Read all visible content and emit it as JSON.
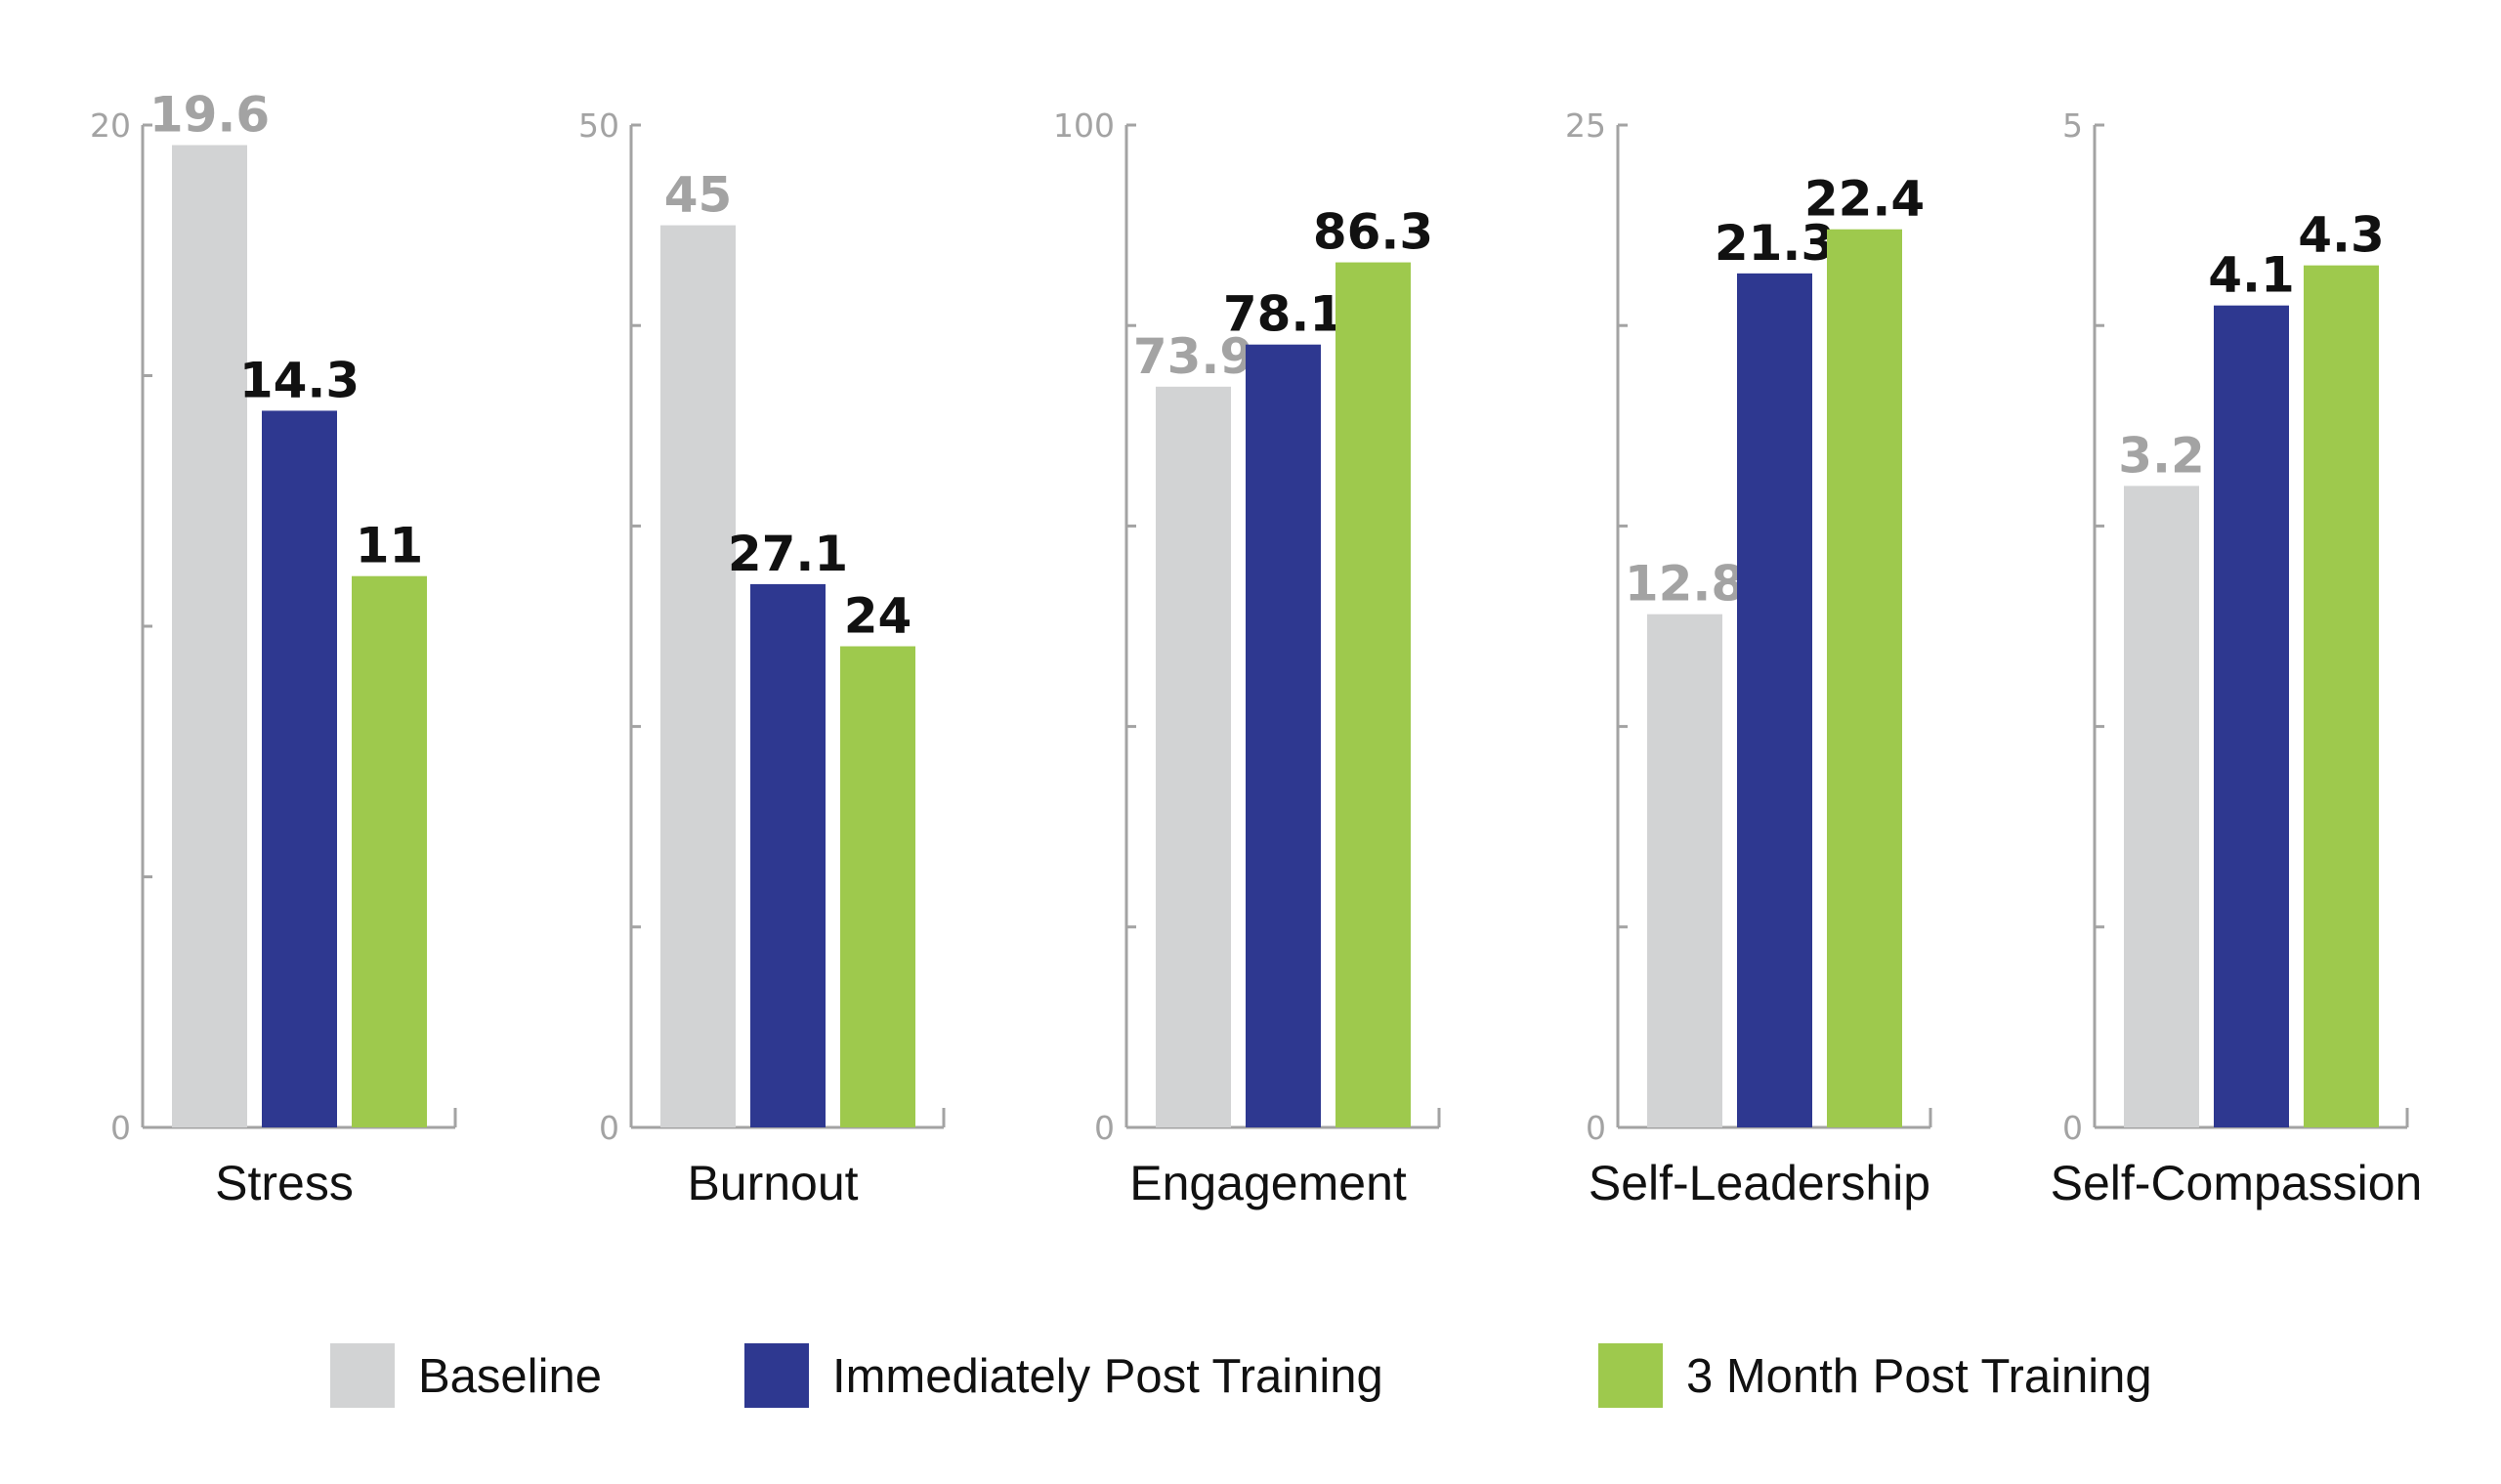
{
  "chart_data": {
    "type": "bar",
    "grid": false,
    "legend_position": "bottom",
    "series": [
      {
        "name": "Baseline",
        "color": "#d2d3d4",
        "label_color": "#a3a3a3"
      },
      {
        "name": "Immediately Post Training",
        "color": "#2e3890",
        "label_color": "#111111"
      },
      {
        "name": "3 Month Post Training",
        "color": "#9ec94d",
        "label_color": "#111111"
      }
    ],
    "panels": [
      {
        "category": "Stress",
        "ylim": [
          0,
          20
        ],
        "ticks": [
          "0",
          "20"
        ],
        "tick_count": 5,
        "values": [
          19.6,
          14.3,
          11
        ],
        "value_labels": [
          "19.6",
          "14.3",
          "11"
        ]
      },
      {
        "category": "Burnout",
        "ylim": [
          0,
          50
        ],
        "ticks": [
          "0",
          "50"
        ],
        "tick_count": 6,
        "values": [
          45,
          27.1,
          24
        ],
        "value_labels": [
          "45",
          "27.1",
          "24"
        ]
      },
      {
        "category": "Engagement",
        "ylim": [
          0,
          100
        ],
        "ticks": [
          "0",
          "100"
        ],
        "tick_count": 6,
        "values": [
          73.9,
          78.1,
          86.3
        ],
        "value_labels": [
          "73.9",
          "78.1",
          "86.3"
        ]
      },
      {
        "category": "Self-Leadership",
        "ylim": [
          0,
          25
        ],
        "ticks": [
          "0",
          "25"
        ],
        "tick_count": 6,
        "values": [
          12.8,
          21.3,
          22.4
        ],
        "value_labels": [
          "12.8",
          "21.3",
          "22.4"
        ]
      },
      {
        "category": "Self-Compassion",
        "ylim": [
          0,
          5
        ],
        "ticks": [
          "0",
          "5"
        ],
        "tick_count": 6,
        "values": [
          3.2,
          4.1,
          4.3
        ],
        "value_labels": [
          "3.2",
          "4.1",
          "4.3"
        ]
      }
    ]
  }
}
